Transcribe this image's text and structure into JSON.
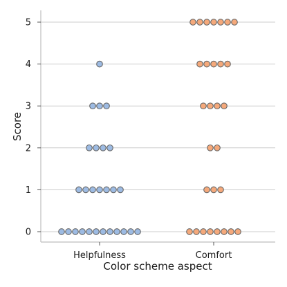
{
  "chart_data": {
    "type": "scatter",
    "subtype": "swarm",
    "title": "",
    "xlabel": "Color scheme aspect",
    "ylabel": "Score",
    "categories": [
      "Helpfulness",
      "Comfort"
    ],
    "ylim": [
      -0.25,
      5.25
    ],
    "yticks": [
      "0",
      "1",
      "2",
      "3",
      "4",
      "5"
    ],
    "grid": "horizontal",
    "legend": "none",
    "series": [
      {
        "category": "Helpfulness",
        "color": "#9dbbe3",
        "counts": [
          {
            "score": 0,
            "n": 12
          },
          {
            "score": 1,
            "n": 7
          },
          {
            "score": 2,
            "n": 4
          },
          {
            "score": 3,
            "n": 3
          },
          {
            "score": 4,
            "n": 1
          },
          {
            "score": 5,
            "n": 0
          }
        ]
      },
      {
        "category": "Comfort",
        "color": "#f5a97b",
        "counts": [
          {
            "score": 0,
            "n": 8
          },
          {
            "score": 1,
            "n": 3
          },
          {
            "score": 2,
            "n": 2
          },
          {
            "score": 3,
            "n": 4
          },
          {
            "score": 4,
            "n": 5
          },
          {
            "score": 5,
            "n": 7
          }
        ]
      }
    ]
  }
}
